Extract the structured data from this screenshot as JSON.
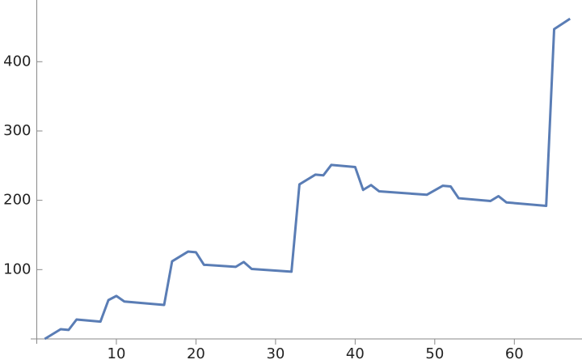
{
  "chart_data": {
    "type": "line",
    "x": [
      1,
      3,
      4,
      5,
      8,
      9,
      10,
      11,
      16,
      17,
      19,
      20,
      21,
      25,
      26,
      27,
      32,
      33,
      35,
      36,
      37,
      40,
      41,
      42,
      43,
      49,
      51,
      52,
      53,
      57,
      58,
      59,
      64,
      65,
      67
    ],
    "series": [
      {
        "color": "#5a7db5",
        "values": [
          0,
          14,
          13,
          28,
          25,
          56,
          62,
          54,
          49,
          112,
          126,
          125,
          107,
          104,
          111,
          101,
          97,
          223,
          237,
          236,
          251,
          248,
          215,
          222,
          213,
          208,
          221,
          220,
          203,
          199,
          206,
          197,
          192,
          447,
          462
        ]
      }
    ],
    "xlim": [
      0,
      68.5
    ],
    "ylim": [
      0,
      489
    ],
    "xticks": [
      10,
      20,
      30,
      40,
      50,
      60
    ],
    "yticks": [
      100,
      200,
      300,
      400
    ]
  }
}
